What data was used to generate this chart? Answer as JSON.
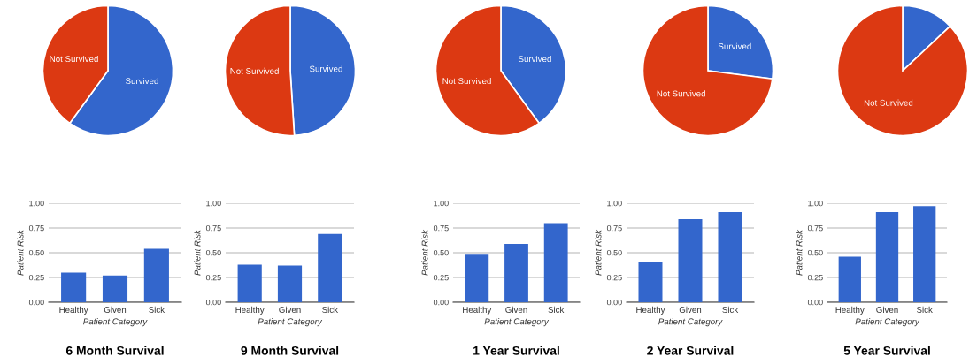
{
  "chart_data": [
    {
      "type": "pie",
      "categories": [
        "Survived",
        "Not Survived"
      ],
      "values": [
        60,
        40
      ],
      "colors": [
        "#3366cc",
        "#dc3912"
      ]
    },
    {
      "type": "pie",
      "categories": [
        "Survived",
        "Not Survived"
      ],
      "values": [
        49,
        51
      ],
      "colors": [
        "#3366cc",
        "#dc3912"
      ]
    },
    {
      "type": "pie",
      "categories": [
        "Survived",
        "Not Survived"
      ],
      "values": [
        40,
        60
      ],
      "colors": [
        "#3366cc",
        "#dc3912"
      ]
    },
    {
      "type": "pie",
      "categories": [
        "Survived",
        "Not Survived"
      ],
      "values": [
        27,
        73
      ],
      "colors": [
        "#3366cc",
        "#dc3912"
      ]
    },
    {
      "type": "pie",
      "categories": [
        null,
        "Not Survived"
      ],
      "values": [
        13,
        87
      ],
      "colors": [
        "#3366cc",
        "#dc3912"
      ]
    },
    {
      "type": "bar",
      "title": "6 Month Survival",
      "xlabel": "Patient Category",
      "ylabel": "Patient Risk",
      "categories": [
        "Healthy",
        "Given",
        "Sick"
      ],
      "values": [
        0.3,
        0.27,
        0.54
      ],
      "color": "#3366cc",
      "ylim": [
        0,
        1
      ],
      "yticks": [
        {
          "value": 0,
          "label": "0.00"
        },
        {
          "value": 0.25,
          "label": "0.25"
        },
        {
          "value": 0.5,
          "label": "0.50"
        },
        {
          "value": 0.75,
          "label": "0.75"
        },
        {
          "value": 1,
          "label": "1.00"
        }
      ],
      "grid": "y"
    },
    {
      "type": "bar",
      "title": "9 Month Survival",
      "xlabel": "Patient Category",
      "ylabel": "Patient Risk",
      "categories": [
        "Healthy",
        "Given",
        "Sick"
      ],
      "values": [
        0.38,
        0.37,
        0.69
      ],
      "color": "#3366cc",
      "ylim": [
        0,
        1
      ],
      "yticks": [
        {
          "value": 0,
          "label": "0.00"
        },
        {
          "value": 0.25,
          "label": "0.25"
        },
        {
          "value": 0.5,
          "label": "0.50"
        },
        {
          "value": 0.75,
          "label": "0.75"
        },
        {
          "value": 1,
          "label": "1.00"
        }
      ],
      "grid": "y"
    },
    {
      "type": "bar",
      "title": "1 Year Survival",
      "xlabel": "Patient Category",
      "ylabel": "Patient Risk",
      "categories": [
        "Healthy",
        "Given",
        "Sick"
      ],
      "values": [
        0.48,
        0.59,
        0.8
      ],
      "color": "#3366cc",
      "ylim": [
        0,
        1
      ],
      "yticks": [
        {
          "value": 0,
          "label": "0.00"
        },
        {
          "value": 0.25,
          "label": "0.25"
        },
        {
          "value": 0.5,
          "label": "0.50"
        },
        {
          "value": 0.75,
          "label": "0.75"
        },
        {
          "value": 1,
          "label": "1.00"
        }
      ],
      "grid": "y"
    },
    {
      "type": "bar",
      "title": "2 Year Survival",
      "xlabel": "Patient Category",
      "ylabel": "Patient Risk",
      "categories": [
        "Healthy",
        "Given",
        "Sick"
      ],
      "values": [
        0.41,
        0.84,
        0.91
      ],
      "color": "#3366cc",
      "ylim": [
        0,
        1
      ],
      "yticks": [
        {
          "value": 0,
          "label": "0.00"
        },
        {
          "value": 0.25,
          "label": "0.25"
        },
        {
          "value": 0.5,
          "label": "0.50"
        },
        {
          "value": 0.75,
          "label": "0.75"
        },
        {
          "value": 1,
          "label": "1.00"
        }
      ],
      "grid": "y"
    },
    {
      "type": "bar",
      "title": "5 Year Survival",
      "xlabel": "Patient Category",
      "ylabel": "Patient Risk",
      "categories": [
        "Healthy",
        "Given",
        "Sick"
      ],
      "values": [
        0.46,
        0.91,
        0.97
      ],
      "color": "#3366cc",
      "ylim": [
        0,
        1
      ],
      "yticks": [
        {
          "value": 0,
          "label": "0.00"
        },
        {
          "value": 0.25,
          "label": "0.25"
        },
        {
          "value": 0.5,
          "label": "0.50"
        },
        {
          "value": 0.75,
          "label": "0.75"
        },
        {
          "value": 1,
          "label": "1.00"
        }
      ],
      "grid": "y"
    }
  ]
}
